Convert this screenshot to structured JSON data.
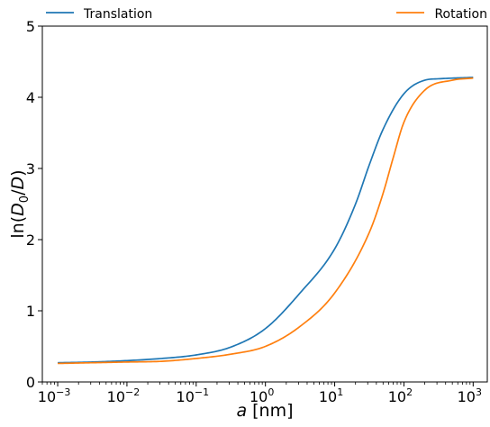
{
  "chart_data": {
    "type": "line",
    "title": "",
    "xlabel": "a [nm]",
    "ylabel": "ln(D0/D)",
    "xscale": "log",
    "xlim": [
      0.0006,
      1600
    ],
    "ylim": [
      0,
      5
    ],
    "yticks": [
      0,
      1,
      2,
      3,
      4,
      5
    ],
    "xtick_exponents": [
      -3,
      -2,
      -1,
      0,
      1,
      2,
      3
    ],
    "grid": false,
    "legend_placement": "top, above plot (one entry left, one right)",
    "series": [
      {
        "name": "Translation",
        "color": "#1f77b4",
        "x": [
          0.001,
          0.00316,
          0.01,
          0.0316,
          0.1,
          0.316,
          1,
          3.16,
          10,
          20,
          31.6,
          50,
          100,
          200,
          316,
          1000
        ],
        "y": [
          0.27,
          0.28,
          0.3,
          0.33,
          0.38,
          0.49,
          0.75,
          1.25,
          1.87,
          2.5,
          3.05,
          3.55,
          4.05,
          4.24,
          4.26,
          4.28
        ]
      },
      {
        "name": "Rotation",
        "color": "#ff7f0e",
        "x": [
          0.001,
          0.00316,
          0.01,
          0.0316,
          0.1,
          0.316,
          1,
          3.16,
          10,
          31.6,
          50,
          70,
          100,
          200,
          500,
          1000
        ],
        "y": [
          0.26,
          0.27,
          0.28,
          0.29,
          0.33,
          0.39,
          0.5,
          0.78,
          1.25,
          2.1,
          2.65,
          3.15,
          3.65,
          4.1,
          4.24,
          4.27
        ]
      }
    ]
  }
}
